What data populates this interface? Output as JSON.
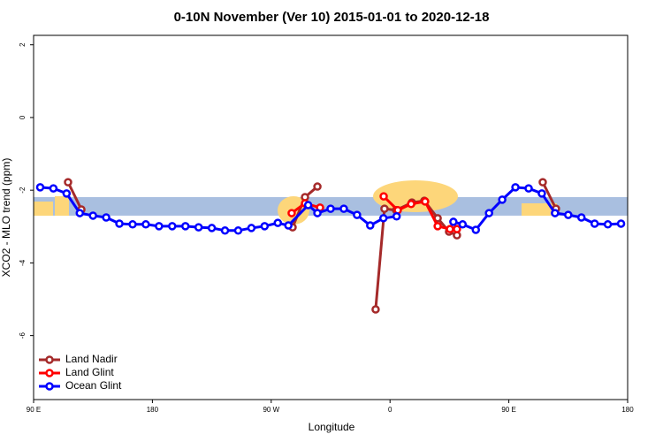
{
  "chart_data": {
    "type": "line",
    "title": "0-10N November (Ver 10)   2015-01-01 to 2020-12-18",
    "x_label": "Longitude",
    "y_label": "XCO2 - MLO trend (ppm)",
    "xlim": [
      90,
      540
    ],
    "ylim": [
      -7.76,
      2.26
    ],
    "xticks": [
      {
        "value": 90,
        "label": "90 E"
      },
      {
        "value": 180,
        "label": "180"
      },
      {
        "value": 270,
        "label": "90 W"
      },
      {
        "value": 360,
        "label": "0"
      },
      {
        "value": 450,
        "label": "90 E"
      },
      {
        "value": 540,
        "label": "180"
      }
    ],
    "yticks": [
      2,
      0,
      -2,
      -4,
      -6
    ],
    "shaded_band": [
      -2.7,
      -2.19
    ],
    "band_color": "#a9bfe0",
    "legend": "bottom-left",
    "series": [
      {
        "name": "Land Nadir",
        "color": "#a52a2a",
        "x": [
          116.1,
          126.2,
          200,
          286.2,
          295.6,
          305,
          330,
          349.1,
          355.8,
          364.6,
          376.6,
          386,
          396.1,
          404.7,
          410.7,
          450,
          475.7,
          485.7
        ],
        "values": [
          -1.78,
          -2.53,
          null,
          -3.02,
          -2.19,
          -1.9,
          null,
          -5.28,
          -2.51,
          -2.55,
          -2.34,
          -2.29,
          -2.77,
          -3.14,
          -3.24,
          null,
          -1.78,
          -2.51
        ]
      },
      {
        "name": "Land Glint",
        "color": "#ff0000",
        "x": [
          285.5,
          295.6,
          307,
          330,
          355.2,
          365.9,
          376,
          386.6,
          396.1,
          405.4,
          410.7
        ],
        "values": [
          -2.63,
          -2.36,
          -2.48,
          null,
          -2.17,
          -2.55,
          -2.38,
          -2.31,
          -2.99,
          -3.07,
          -3.07
        ]
      },
      {
        "name": "Ocean Glint",
        "color": "#0000ff",
        "x": [
          95,
          105,
          115,
          125,
          135,
          145,
          155,
          165,
          175,
          185,
          195,
          205,
          215,
          225,
          235,
          245,
          255,
          265,
          275,
          283,
          298,
          305,
          315,
          325,
          335,
          345,
          355,
          365,
          385,
          408,
          415,
          425,
          435,
          445,
          455,
          465,
          475,
          485,
          495,
          505,
          515,
          525,
          535
        ],
        "values": [
          -1.92,
          -1.95,
          -2.09,
          -2.63,
          -2.7,
          -2.75,
          -2.92,
          -2.94,
          -2.94,
          -2.99,
          -2.99,
          -2.99,
          -3.02,
          -3.04,
          -3.11,
          -3.11,
          -3.04,
          -2.99,
          -2.9,
          -2.97,
          -2.41,
          -2.63,
          -2.51,
          -2.51,
          -2.68,
          -2.97,
          -2.77,
          -2.72,
          null,
          -2.87,
          -2.94,
          -3.09,
          -2.63,
          -2.26,
          -1.92,
          -1.95,
          -2.09,
          -2.63,
          -2.68,
          -2.75,
          -2.92,
          -2.94,
          -2.92
        ]
      }
    ]
  }
}
